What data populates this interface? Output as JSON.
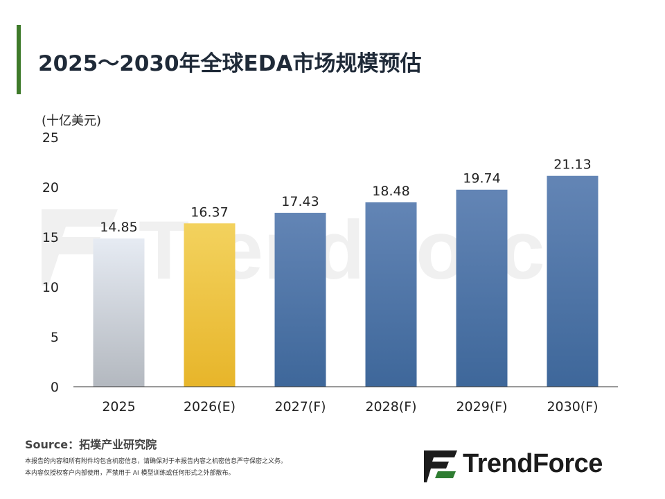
{
  "header": {
    "title": "2025～2030年全球EDA市场规模预估"
  },
  "colors": {
    "accent": "#3e7a2a",
    "bar_2025_top": "#e6ebf3",
    "bar_2025_bottom": "#b3b8bf",
    "bar_2026_top": "#f3d25e",
    "bar_2026_bottom": "#e7b52a",
    "bar_forecast_top": "#6385b5",
    "bar_forecast_bottom": "#3e679a",
    "logo_green": "#2f7d32",
    "axis": "#333333"
  },
  "chart_data": {
    "type": "bar",
    "title": "2025～2030年全球EDA市场规模预估",
    "ylabel": "(十亿美元)",
    "xlabel": "",
    "categories": [
      "2025",
      "2026(E)",
      "2027(F)",
      "2028(F)",
      "2029(F)",
      "2030(F)"
    ],
    "values": [
      14.85,
      16.37,
      17.43,
      18.48,
      19.74,
      21.13
    ],
    "value_labels": [
      "14.85",
      "16.37",
      "17.43",
      "18.48",
      "19.74",
      "21.13"
    ],
    "ylim": [
      0,
      25
    ],
    "yticks": [
      0,
      5,
      10,
      15,
      20,
      25
    ],
    "grid": false,
    "legend": "none"
  },
  "footer": {
    "source": "Source：拓墣产业研究院",
    "disclaimer_1": "本报告的内容和所有附件均包含机密信息，请确保对于本报告内容之机密信息严守保密之义务。",
    "disclaimer_2": "本内容仅授权客户内部使用，严禁用于 AI 模型训练或任何形式之外部散布。"
  },
  "logo": {
    "text": "TrendForce",
    "watermark_text": "TrendForce",
    "icon": "trendforce-logo-icon"
  }
}
